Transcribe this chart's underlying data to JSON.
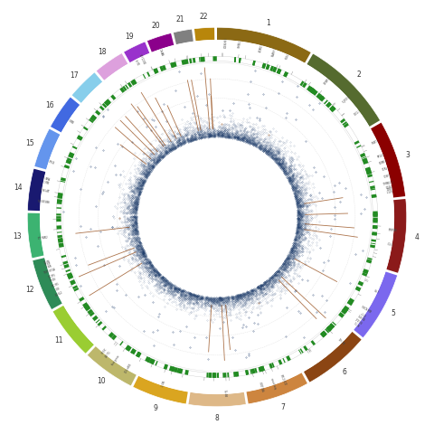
{
  "chromosomes": [
    1,
    2,
    3,
    4,
    5,
    6,
    7,
    8,
    9,
    10,
    11,
    12,
    13,
    14,
    15,
    16,
    17,
    18,
    19,
    20,
    21,
    22
  ],
  "chrom_sizes": [
    249,
    242,
    198,
    190,
    181,
    171,
    159,
    146,
    141,
    135,
    135,
    133,
    115,
    107,
    102,
    90,
    81,
    78,
    59,
    63,
    47,
    51
  ],
  "chrom_colors": [
    "#8B7355",
    "#6B8E23",
    "#8B0000",
    "#8B0000",
    "#9B30FF",
    "#9370DB",
    "#D2691E",
    "#D2B48C",
    "#DAA520",
    "#BDB76B",
    "#9ACD32",
    "#6B8E6B",
    "#3CB371",
    "#4169E1",
    "#87CEEB",
    "#4682B4",
    "#87CEEB",
    "#DDA0DD",
    "#9370DB",
    "#9370DB",
    "#808080",
    "#DAA520"
  ],
  "chrom_colors_actual": [
    "#8B7355",
    "#556B2F",
    "#8B0000",
    "#8B0000",
    "#7B68EE",
    "#8B4513",
    "#D2691E",
    "#F4A460",
    "#DAA520",
    "#9ACD32",
    "#9ACD32",
    "#2E8B57",
    "#32CD32",
    "#4169E1",
    "#6495ED",
    "#4169E1",
    "#ADD8E6",
    "#DDA0DD",
    "#8B008B",
    "#9932CC",
    "#696969",
    "#B8860B"
  ],
  "background_color": "#ffffff",
  "manhattan_color_main": "#1a3a6b",
  "manhattan_color_highlight": "#8B4513",
  "fine_mapping_color": "#228B22",
  "gene_label_color": "#696969",
  "chrom_label_color": "#333333"
}
